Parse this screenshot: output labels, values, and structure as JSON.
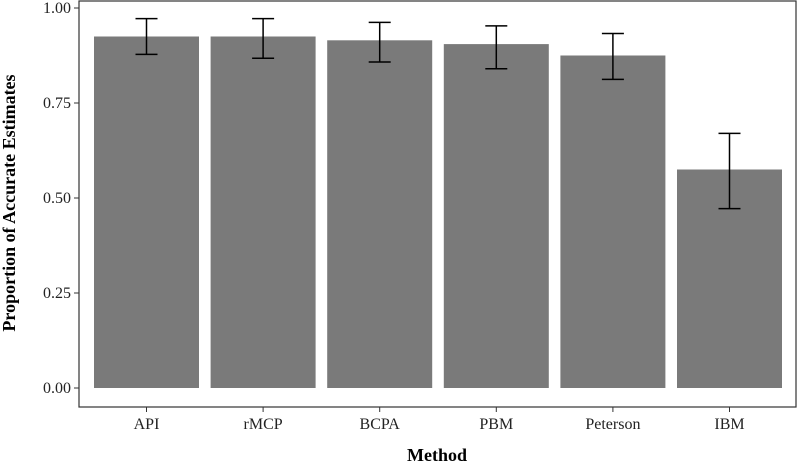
{
  "chart_data": {
    "type": "bar",
    "title": "",
    "xlabel": "Method",
    "ylabel": "Proportion of Accurate Estimates",
    "categories": [
      "API",
      "rMCP",
      "BCPA",
      "PBM",
      "Peterson",
      "IBM"
    ],
    "values": [
      0.925,
      0.925,
      0.915,
      0.905,
      0.875,
      0.575
    ],
    "error_low": [
      0.878,
      0.868,
      0.858,
      0.84,
      0.812,
      0.472
    ],
    "error_high": [
      0.972,
      0.972,
      0.962,
      0.953,
      0.933,
      0.67
    ],
    "ylim": [
      0,
      1
    ],
    "yticks": [
      0.0,
      0.25,
      0.5,
      0.75,
      1.0
    ],
    "ytick_labels": [
      "0.00",
      "0.25",
      "0.50",
      "0.75",
      "1.00"
    ],
    "bar_color": "#7a7a7a",
    "grid": false,
    "legend": false
  }
}
